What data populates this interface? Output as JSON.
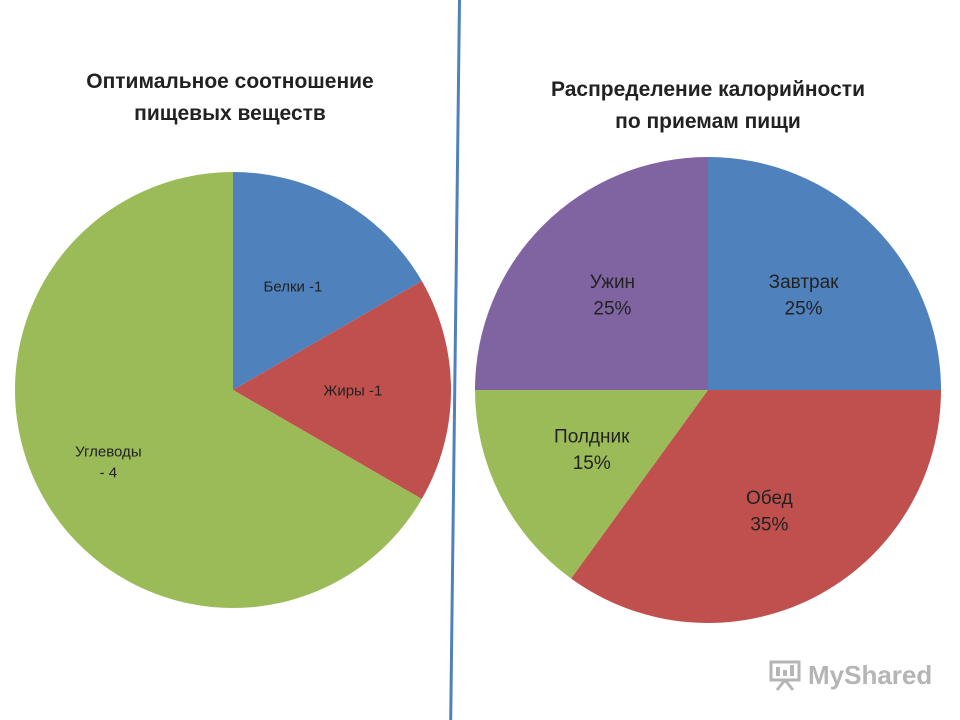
{
  "chart_data": [
    {
      "type": "pie",
      "title": "Оптимальное соотношение\nпищевых веществ",
      "slices": [
        {
          "label": "Белки -1",
          "value": 1,
          "color": "#4f81bd"
        },
        {
          "label": "Жиры -1",
          "value": 1,
          "color": "#c0504d"
        },
        {
          "label": "Углеводы\n- 4",
          "value": 4,
          "color": "#9bbb59"
        }
      ]
    },
    {
      "type": "pie",
      "title": "Распределение калорийности\nпо приемам пищи",
      "slices": [
        {
          "label": "Завтрак\n25%",
          "value": 25,
          "color": "#4f81bd"
        },
        {
          "label": "Обед\n35%",
          "value": 35,
          "color": "#c0504d"
        },
        {
          "label": "Полдник\n15%",
          "value": 15,
          "color": "#9bbb59"
        },
        {
          "label": "Ужин\n25%",
          "value": 25,
          "color": "#8064a2"
        }
      ]
    }
  ],
  "watermark": {
    "text": "MyShared",
    "icon": "presentation-board-icon"
  }
}
